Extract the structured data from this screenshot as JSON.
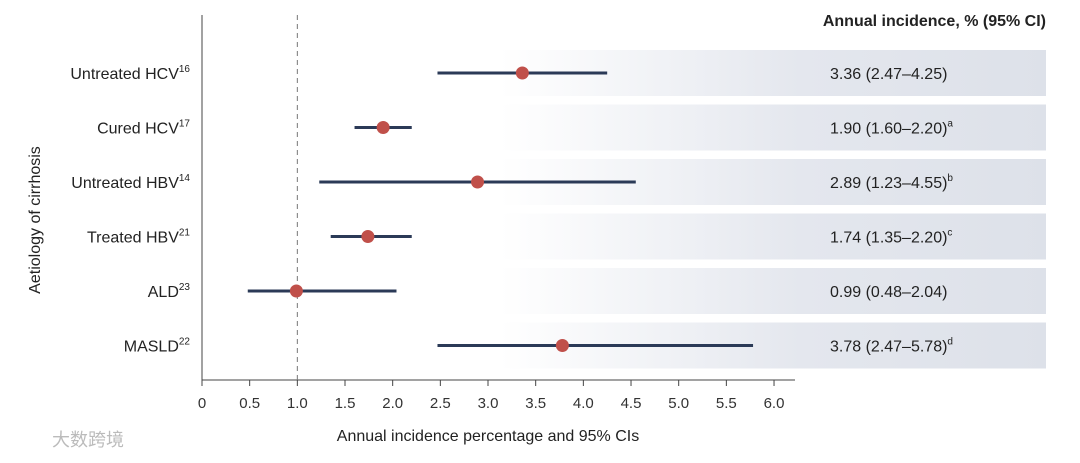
{
  "chart_data": {
    "type": "forest",
    "categories": [
      "Untreated HCV",
      "Cured HCV",
      "Untreated HBV",
      "Treated HBV",
      "ALD",
      "MASLD"
    ],
    "category_refs": [
      "16",
      "17",
      "14",
      "21",
      "23",
      "22"
    ],
    "values": [
      3.36,
      1.9,
      2.89,
      1.74,
      0.99,
      3.78
    ],
    "lower": [
      2.47,
      1.6,
      1.23,
      1.35,
      0.48,
      2.47
    ],
    "upper": [
      4.25,
      2.2,
      4.55,
      2.2,
      2.04,
      5.78
    ],
    "value_labels": [
      "3.36 (2.47–4.25)",
      "1.90 (1.60–2.20)",
      "2.89 (1.23–4.55)",
      "1.74 (1.35–2.20)",
      "0.99 (0.48–2.04)",
      "3.78 (2.47–5.78)"
    ],
    "value_label_notes": [
      null,
      "a",
      "b",
      "c",
      null,
      "d"
    ],
    "table_header": "Annual incidence, % (95% CI)",
    "xlabel": "Annual incidence percentage and 95% CIs",
    "ylabel": "Aetiology of cirrhosis",
    "xlim": [
      0,
      6.22
    ],
    "xticks": [
      0,
      0.5,
      {
        "value": 1,
        "label": "1.0"
      },
      1.5,
      {
        "value": 2,
        "label": "2.0"
      },
      2.5,
      {
        "value": 3,
        "label": "3.0"
      },
      3.5,
      {
        "value": 4,
        "label": "4.0"
      },
      4.5,
      {
        "value": 5,
        "label": "5.0"
      },
      5.5,
      {
        "value": 6,
        "label": "6.0"
      }
    ],
    "reference_line": 1,
    "marker_color": "#c0504a",
    "ci_color": "#2b3a57",
    "watermark": "大数跨境"
  }
}
